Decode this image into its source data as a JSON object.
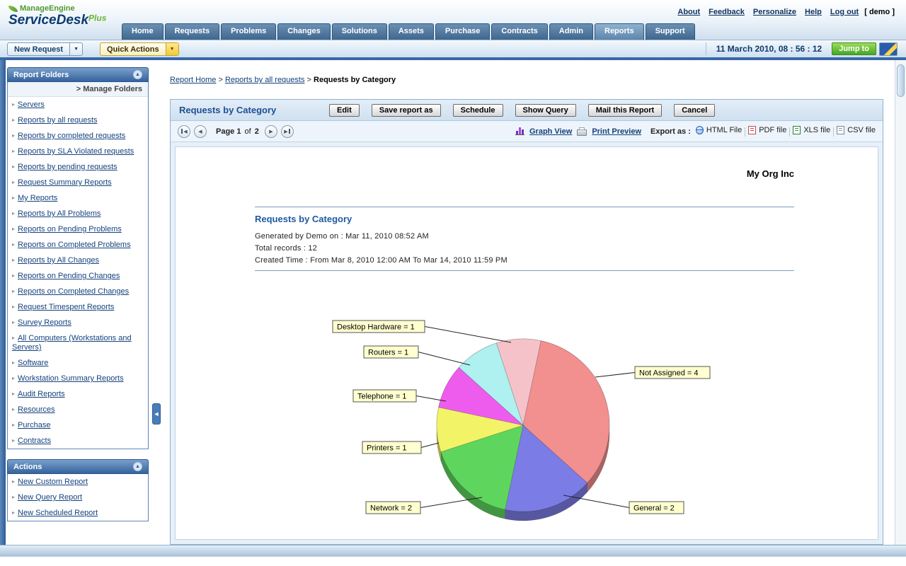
{
  "header": {
    "brand": {
      "manageengine": "ManageEngine",
      "product": "ServiceDesk",
      "plus": "Plus"
    },
    "links": [
      "About",
      "Feedback",
      "Personalize",
      "Help",
      "Log out"
    ],
    "user_badge": "[ demo ]",
    "tabs": [
      {
        "label": "Home"
      },
      {
        "label": "Requests"
      },
      {
        "label": "Problems"
      },
      {
        "label": "Changes"
      },
      {
        "label": "Solutions"
      },
      {
        "label": "Assets"
      },
      {
        "label": "Purchase"
      },
      {
        "label": "Contracts"
      },
      {
        "label": "Admin"
      },
      {
        "label": "Reports",
        "active": true
      },
      {
        "label": "Support"
      }
    ]
  },
  "toolbar": {
    "new_request": "New Request",
    "quick_actions": "Quick Actions",
    "datetime": "11 March 2010, 08 : 56 : 12",
    "jump_to": "Jump to"
  },
  "sidebar": {
    "folders_title": "Report Folders",
    "manage_folders": "> Manage Folders",
    "folders": [
      "Servers",
      "Reports by all requests",
      "Reports by completed requests",
      "Reports by SLA Violated requests",
      "Reports by pending requests",
      "Request Summary Reports",
      "My Reports",
      "Reports by All Problems",
      "Reports on Pending Problems",
      "Reports on Completed Problems",
      "Reports by All Changes",
      "Reports on Pending Changes",
      "Reports on Completed Changes",
      "Request Timespent Reports",
      "Survey Reports",
      "All Computers (Workstations and Servers)",
      "Software",
      "Workstation Summary Reports",
      "Audit Reports",
      "Resources",
      "Purchase",
      "Contracts"
    ],
    "actions_title": "Actions",
    "actions": [
      "New Custom Report",
      "New Query Report",
      "New Scheduled Report"
    ]
  },
  "breadcrumb": {
    "links": [
      "Report Home",
      "Reports by all requests"
    ],
    "current": "Requests by Category"
  },
  "report": {
    "title": "Requests by Category",
    "buttons": [
      "Edit",
      "Save report as",
      "Schedule",
      "Show Query",
      "Mail this Report",
      "Cancel"
    ],
    "pager": {
      "page_label": "Page",
      "current": "1",
      "of_label": "of",
      "total": "2"
    },
    "graph_view": "Graph View",
    "print_preview": "Print Preview",
    "export_label": "Export as :",
    "exports": [
      {
        "label": "HTML File",
        "type": "html"
      },
      {
        "label": "PDF file",
        "type": "pdf"
      },
      {
        "label": "XLS file",
        "type": "xls"
      },
      {
        "label": "CSV file",
        "type": "csv"
      }
    ],
    "org_name": "My Org Inc",
    "heading": "Requests by Category",
    "generated": "Generated by Demo  on : Mar 11, 2010 08:52 AM",
    "total_records": "Total records : 12",
    "created_time": "Created Time : From Mar 8, 2010 12:00 AM To Mar 14, 2010 11:59 PM"
  },
  "chart_data": {
    "type": "pie",
    "title": "Requests by Category",
    "total": 12,
    "slices": [
      {
        "label": "Desktop Hardware",
        "value": 1,
        "color": "#f6c2ca"
      },
      {
        "label": "Not Assigned",
        "value": 4,
        "color": "#f28f8f"
      },
      {
        "label": "General",
        "value": 2,
        "color": "#7c7ce6"
      },
      {
        "label": "Network",
        "value": 2,
        "color": "#5ed65e"
      },
      {
        "label": "Printers",
        "value": 1,
        "color": "#f3f368"
      },
      {
        "label": "Telephone",
        "value": 1,
        "color": "#ee5cee"
      },
      {
        "label": "Routers",
        "value": 1,
        "color": "#aff0f0"
      }
    ],
    "callout_format": "{label} = {value}",
    "start_angle_deg": -18,
    "clockwise": true,
    "style": "3d",
    "legend": "callouts"
  },
  "icons": {
    "breadcrumb_sep": ">",
    "bullet": "▸",
    "panel_collapse": "▲",
    "dropdown_arrow": "▼",
    "sidebar_collapse": "◄",
    "nav_first": "◀",
    "nav_prev": "◀",
    "nav_next": "▶",
    "nav_last": "▶"
  }
}
